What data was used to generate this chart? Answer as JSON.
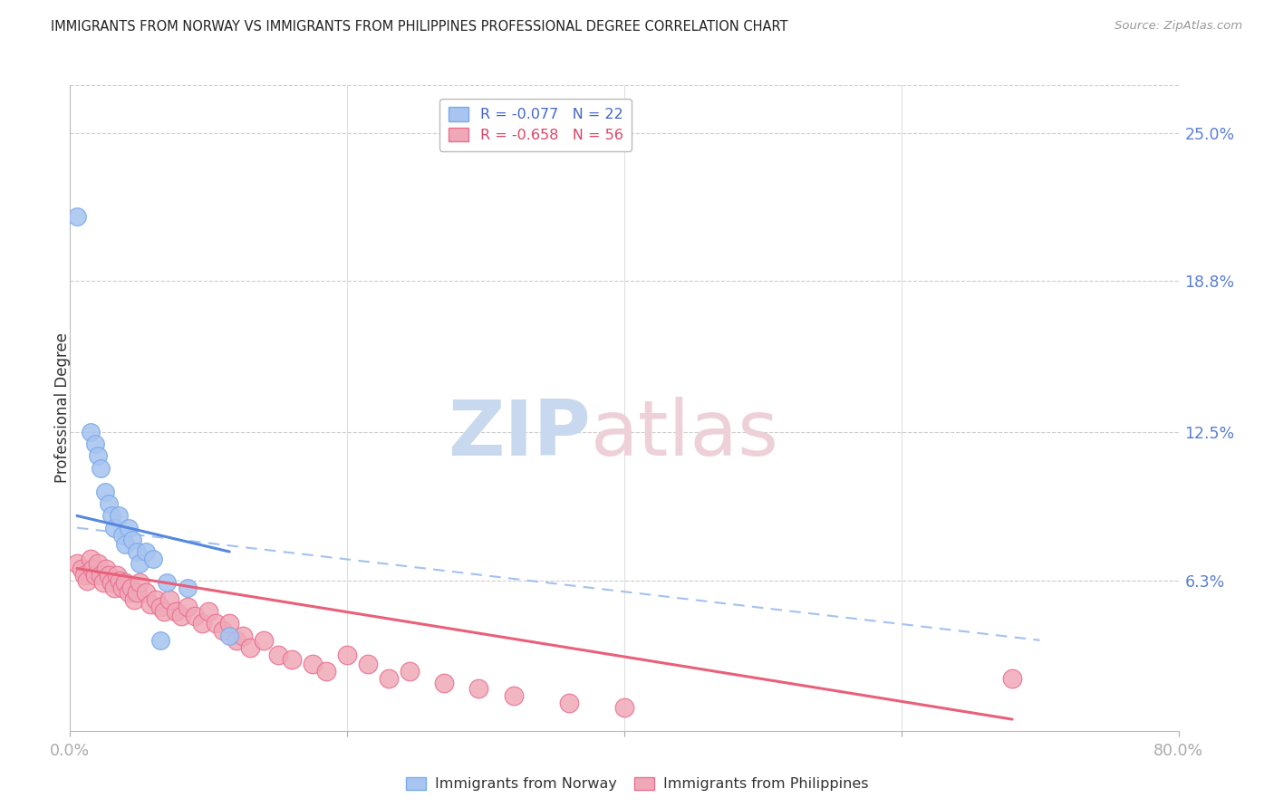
{
  "title": "IMMIGRANTS FROM NORWAY VS IMMIGRANTS FROM PHILIPPINES PROFESSIONAL DEGREE CORRELATION CHART",
  "source": "Source: ZipAtlas.com",
  "ylabel": "Professional Degree",
  "ytick_labels": [
    "25.0%",
    "18.8%",
    "12.5%",
    "6.3%"
  ],
  "ytick_values": [
    0.25,
    0.188,
    0.125,
    0.063
  ],
  "xlim": [
    0.0,
    0.8
  ],
  "ylim": [
    0.0,
    0.27
  ],
  "norway_color": "#A8C4F0",
  "norway_edge_color": "#7AAAE8",
  "philippines_color": "#F0A8B8",
  "philippines_edge_color": "#E87090",
  "norway_line_color": "#5588DD",
  "philippines_line_color": "#E8607A",
  "dashed_line_color": "#99BBEE",
  "norway_R": -0.077,
  "norway_N": 22,
  "philippines_R": -0.658,
  "philippines_N": 56,
  "norway_x": [
    0.005,
    0.015,
    0.018,
    0.02,
    0.022,
    0.025,
    0.028,
    0.03,
    0.032,
    0.035,
    0.038,
    0.04,
    0.042,
    0.045,
    0.048,
    0.05,
    0.055,
    0.06,
    0.065,
    0.07,
    0.085,
    0.115
  ],
  "norway_y": [
    0.215,
    0.125,
    0.12,
    0.115,
    0.11,
    0.1,
    0.095,
    0.09,
    0.085,
    0.09,
    0.082,
    0.078,
    0.085,
    0.08,
    0.075,
    0.07,
    0.075,
    0.072,
    0.038,
    0.062,
    0.06,
    0.04
  ],
  "philippines_x": [
    0.005,
    0.008,
    0.01,
    0.012,
    0.015,
    0.016,
    0.018,
    0.02,
    0.022,
    0.024,
    0.026,
    0.028,
    0.03,
    0.032,
    0.034,
    0.036,
    0.038,
    0.04,
    0.042,
    0.044,
    0.046,
    0.048,
    0.05,
    0.055,
    0.058,
    0.062,
    0.065,
    0.068,
    0.072,
    0.076,
    0.08,
    0.085,
    0.09,
    0.095,
    0.1,
    0.105,
    0.11,
    0.115,
    0.12,
    0.125,
    0.13,
    0.14,
    0.15,
    0.16,
    0.175,
    0.185,
    0.2,
    0.215,
    0.23,
    0.245,
    0.27,
    0.295,
    0.32,
    0.36,
    0.4,
    0.68
  ],
  "philippines_y": [
    0.07,
    0.068,
    0.065,
    0.063,
    0.072,
    0.068,
    0.065,
    0.07,
    0.065,
    0.062,
    0.068,
    0.065,
    0.062,
    0.06,
    0.065,
    0.063,
    0.06,
    0.062,
    0.058,
    0.06,
    0.055,
    0.058,
    0.062,
    0.058,
    0.053,
    0.055,
    0.052,
    0.05,
    0.055,
    0.05,
    0.048,
    0.052,
    0.048,
    0.045,
    0.05,
    0.045,
    0.042,
    0.045,
    0.038,
    0.04,
    0.035,
    0.038,
    0.032,
    0.03,
    0.028,
    0.025,
    0.032,
    0.028,
    0.022,
    0.025,
    0.02,
    0.018,
    0.015,
    0.012,
    0.01,
    0.022
  ],
  "norway_trendline_x": [
    0.005,
    0.115
  ],
  "norway_trendline_y": [
    0.09,
    0.075
  ],
  "philippines_trendline_x": [
    0.005,
    0.68
  ],
  "philippines_trendline_y": [
    0.068,
    0.005
  ],
  "dashed_trendline_x": [
    0.005,
    0.7
  ],
  "dashed_trendline_y": [
    0.085,
    0.038
  ]
}
